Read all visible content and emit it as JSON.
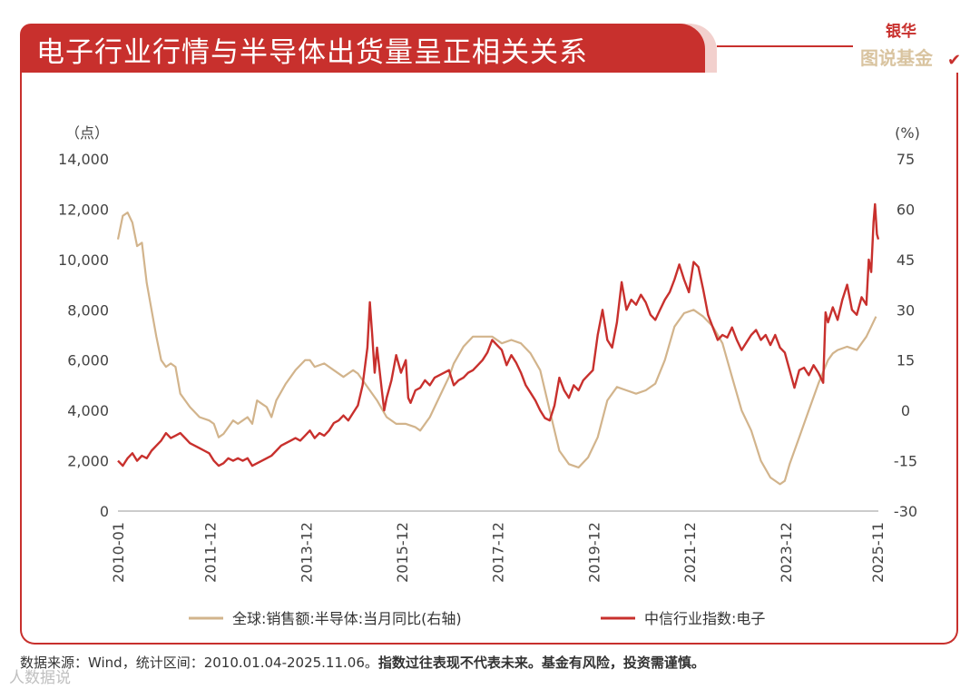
{
  "header": {
    "title": "电子行业行情与半导体出货量呈正相关关系"
  },
  "logo": {
    "top": "银华",
    "bottom": "图说基金"
  },
  "footnote": {
    "source": "数据来源：Wind，统计区间：2010.01.04-2025.11.06。",
    "disclaimer": "指数过往表现不代表未来。基金有风险，投资需谨慎。"
  },
  "watermark": "人数据说",
  "colors": {
    "accent": "#c8302d",
    "gold": "#d2b48c",
    "red_series": "#c8302d"
  },
  "chart_data": {
    "type": "line",
    "left_unit": "（点）",
    "right_unit": "(%)",
    "left_ylim": [
      0,
      14000
    ],
    "left_ticks": [
      "14,000",
      "12,000",
      "10,000",
      "8,000",
      "6,000",
      "4,000",
      "2,000",
      "0"
    ],
    "right_ylim": [
      -30,
      75
    ],
    "right_ticks": [
      "75",
      "60",
      "45",
      "30",
      "15",
      "0",
      "-15",
      "-30"
    ],
    "x_range": [
      2010.0,
      2025.85
    ],
    "x_ticks": [
      {
        "label": "2010-01",
        "t": 2010.0
      },
      {
        "label": "2011-12",
        "t": 2011.92
      },
      {
        "label": "2013-12",
        "t": 2013.92
      },
      {
        "label": "2015-12",
        "t": 2015.92
      },
      {
        "label": "2017-12",
        "t": 2017.92
      },
      {
        "label": "2019-12",
        "t": 2019.92
      },
      {
        "label": "2021-12",
        "t": 2021.92
      },
      {
        "label": "2023-12",
        "t": 2023.92
      },
      {
        "label": "2025-11",
        "t": 2025.83
      }
    ],
    "grid": false,
    "legend_position": "bottom",
    "series": [
      {
        "name": "全球:销售额:半导体:当月同比(右轴)",
        "axis": "right",
        "color": "#d2b48c",
        "points": [
          [
            2010.0,
            51
          ],
          [
            2010.1,
            58
          ],
          [
            2010.2,
            59
          ],
          [
            2010.3,
            56
          ],
          [
            2010.4,
            49
          ],
          [
            2010.5,
            50
          ],
          [
            2010.6,
            38
          ],
          [
            2010.7,
            30
          ],
          [
            2010.8,
            22
          ],
          [
            2010.9,
            15
          ],
          [
            2011.0,
            13
          ],
          [
            2011.1,
            14
          ],
          [
            2011.2,
            13
          ],
          [
            2011.3,
            5
          ],
          [
            2011.5,
            1
          ],
          [
            2011.7,
            -2
          ],
          [
            2011.9,
            -3
          ],
          [
            2012.0,
            -4
          ],
          [
            2012.1,
            -8
          ],
          [
            2012.2,
            -7
          ],
          [
            2012.3,
            -5
          ],
          [
            2012.4,
            -3
          ],
          [
            2012.5,
            -4
          ],
          [
            2012.6,
            -3
          ],
          [
            2012.7,
            -2
          ],
          [
            2012.8,
            -4
          ],
          [
            2012.9,
            3
          ],
          [
            2013.0,
            2
          ],
          [
            2013.1,
            1
          ],
          [
            2013.2,
            -2
          ],
          [
            2013.3,
            3
          ],
          [
            2013.5,
            8
          ],
          [
            2013.7,
            12
          ],
          [
            2013.9,
            15
          ],
          [
            2014.0,
            15
          ],
          [
            2014.1,
            13
          ],
          [
            2014.3,
            14
          ],
          [
            2014.5,
            12
          ],
          [
            2014.7,
            10
          ],
          [
            2014.9,
            12
          ],
          [
            2015.0,
            11
          ],
          [
            2015.2,
            7
          ],
          [
            2015.4,
            3
          ],
          [
            2015.6,
            -2
          ],
          [
            2015.8,
            -4
          ],
          [
            2016.0,
            -4
          ],
          [
            2016.2,
            -5
          ],
          [
            2016.3,
            -6
          ],
          [
            2016.5,
            -2
          ],
          [
            2016.7,
            4
          ],
          [
            2016.9,
            10
          ],
          [
            2017.0,
            14
          ],
          [
            2017.2,
            19
          ],
          [
            2017.4,
            22
          ],
          [
            2017.6,
            22
          ],
          [
            2017.8,
            22
          ],
          [
            2018.0,
            20
          ],
          [
            2018.2,
            21
          ],
          [
            2018.4,
            20
          ],
          [
            2018.6,
            17
          ],
          [
            2018.8,
            12
          ],
          [
            2019.0,
            0
          ],
          [
            2019.2,
            -12
          ],
          [
            2019.4,
            -16
          ],
          [
            2019.6,
            -17
          ],
          [
            2019.8,
            -14
          ],
          [
            2020.0,
            -8
          ],
          [
            2020.2,
            3
          ],
          [
            2020.4,
            7
          ],
          [
            2020.6,
            6
          ],
          [
            2020.8,
            5
          ],
          [
            2021.0,
            6
          ],
          [
            2021.2,
            8
          ],
          [
            2021.4,
            15
          ],
          [
            2021.6,
            25
          ],
          [
            2021.8,
            29
          ],
          [
            2022.0,
            30
          ],
          [
            2022.2,
            28
          ],
          [
            2022.4,
            25
          ],
          [
            2022.6,
            20
          ],
          [
            2022.8,
            10
          ],
          [
            2023.0,
            0
          ],
          [
            2023.2,
            -6
          ],
          [
            2023.4,
            -15
          ],
          [
            2023.6,
            -20
          ],
          [
            2023.8,
            -22
          ],
          [
            2023.9,
            -21
          ],
          [
            2024.0,
            -16
          ],
          [
            2024.2,
            -8
          ],
          [
            2024.4,
            0
          ],
          [
            2024.6,
            8
          ],
          [
            2024.8,
            15
          ],
          [
            2024.9,
            17
          ],
          [
            2025.0,
            18
          ],
          [
            2025.2,
            19
          ],
          [
            2025.4,
            18
          ],
          [
            2025.6,
            22
          ],
          [
            2025.7,
            25
          ],
          [
            2025.8,
            28
          ]
        ]
      },
      {
        "name": "中信行业指数:电子",
        "axis": "left",
        "color": "#c8302d",
        "points": [
          [
            2010.0,
            2000
          ],
          [
            2010.1,
            1800
          ],
          [
            2010.2,
            2100
          ],
          [
            2010.3,
            2300
          ],
          [
            2010.4,
            2000
          ],
          [
            2010.5,
            2200
          ],
          [
            2010.6,
            2100
          ],
          [
            2010.7,
            2400
          ],
          [
            2010.8,
            2600
          ],
          [
            2010.9,
            2800
          ],
          [
            2011.0,
            3100
          ],
          [
            2011.1,
            2900
          ],
          [
            2011.2,
            3000
          ],
          [
            2011.3,
            3100
          ],
          [
            2011.4,
            2900
          ],
          [
            2011.5,
            2700
          ],
          [
            2011.6,
            2600
          ],
          [
            2011.7,
            2500
          ],
          [
            2011.8,
            2400
          ],
          [
            2011.9,
            2300
          ],
          [
            2012.0,
            2000
          ],
          [
            2012.1,
            1800
          ],
          [
            2012.2,
            1900
          ],
          [
            2012.3,
            2100
          ],
          [
            2012.4,
            2000
          ],
          [
            2012.5,
            2100
          ],
          [
            2012.6,
            2000
          ],
          [
            2012.7,
            2100
          ],
          [
            2012.8,
            1800
          ],
          [
            2012.9,
            1900
          ],
          [
            2013.0,
            2000
          ],
          [
            2013.1,
            2100
          ],
          [
            2013.2,
            2200
          ],
          [
            2013.3,
            2400
          ],
          [
            2013.4,
            2600
          ],
          [
            2013.5,
            2700
          ],
          [
            2013.6,
            2800
          ],
          [
            2013.7,
            2900
          ],
          [
            2013.8,
            2800
          ],
          [
            2013.9,
            3000
          ],
          [
            2014.0,
            3200
          ],
          [
            2014.1,
            2900
          ],
          [
            2014.2,
            3100
          ],
          [
            2014.3,
            3000
          ],
          [
            2014.4,
            3200
          ],
          [
            2014.5,
            3500
          ],
          [
            2014.6,
            3600
          ],
          [
            2014.7,
            3800
          ],
          [
            2014.8,
            3600
          ],
          [
            2014.9,
            3900
          ],
          [
            2015.0,
            4200
          ],
          [
            2015.1,
            5000
          ],
          [
            2015.2,
            6500
          ],
          [
            2015.25,
            8300
          ],
          [
            2015.3,
            7000
          ],
          [
            2015.35,
            5500
          ],
          [
            2015.4,
            6500
          ],
          [
            2015.5,
            4800
          ],
          [
            2015.55,
            4000
          ],
          [
            2015.6,
            4500
          ],
          [
            2015.7,
            5200
          ],
          [
            2015.8,
            6200
          ],
          [
            2015.9,
            5500
          ],
          [
            2016.0,
            6000
          ],
          [
            2016.05,
            4500
          ],
          [
            2016.1,
            4300
          ],
          [
            2016.2,
            4800
          ],
          [
            2016.3,
            4900
          ],
          [
            2016.4,
            5200
          ],
          [
            2016.5,
            5000
          ],
          [
            2016.6,
            5300
          ],
          [
            2016.7,
            5400
          ],
          [
            2016.8,
            5500
          ],
          [
            2016.9,
            5600
          ],
          [
            2017.0,
            5000
          ],
          [
            2017.1,
            5200
          ],
          [
            2017.2,
            5300
          ],
          [
            2017.3,
            5500
          ],
          [
            2017.4,
            5600
          ],
          [
            2017.5,
            5800
          ],
          [
            2017.6,
            6000
          ],
          [
            2017.7,
            6300
          ],
          [
            2017.8,
            6800
          ],
          [
            2017.9,
            6600
          ],
          [
            2018.0,
            6400
          ],
          [
            2018.1,
            5800
          ],
          [
            2018.2,
            6200
          ],
          [
            2018.3,
            5900
          ],
          [
            2018.4,
            5500
          ],
          [
            2018.5,
            5000
          ],
          [
            2018.6,
            4700
          ],
          [
            2018.7,
            4400
          ],
          [
            2018.8,
            4000
          ],
          [
            2018.9,
            3700
          ],
          [
            2019.0,
            3600
          ],
          [
            2019.1,
            4200
          ],
          [
            2019.2,
            5300
          ],
          [
            2019.3,
            4800
          ],
          [
            2019.4,
            4500
          ],
          [
            2019.5,
            5000
          ],
          [
            2019.6,
            4800
          ],
          [
            2019.7,
            5200
          ],
          [
            2019.8,
            5400
          ],
          [
            2019.9,
            5600
          ],
          [
            2020.0,
            7000
          ],
          [
            2020.1,
            8000
          ],
          [
            2020.2,
            6800
          ],
          [
            2020.3,
            6500
          ],
          [
            2020.4,
            7500
          ],
          [
            2020.5,
            9100
          ],
          [
            2020.6,
            8000
          ],
          [
            2020.7,
            8400
          ],
          [
            2020.8,
            8200
          ],
          [
            2020.9,
            8600
          ],
          [
            2021.0,
            8300
          ],
          [
            2021.1,
            7800
          ],
          [
            2021.2,
            7600
          ],
          [
            2021.3,
            8000
          ],
          [
            2021.4,
            8400
          ],
          [
            2021.5,
            8700
          ],
          [
            2021.6,
            9200
          ],
          [
            2021.7,
            9800
          ],
          [
            2021.8,
            9200
          ],
          [
            2021.9,
            8700
          ],
          [
            2022.0,
            9900
          ],
          [
            2022.1,
            9700
          ],
          [
            2022.2,
            8800
          ],
          [
            2022.3,
            7800
          ],
          [
            2022.4,
            7300
          ],
          [
            2022.5,
            6800
          ],
          [
            2022.6,
            7000
          ],
          [
            2022.7,
            6900
          ],
          [
            2022.8,
            7300
          ],
          [
            2022.9,
            6800
          ],
          [
            2023.0,
            6400
          ],
          [
            2023.1,
            6700
          ],
          [
            2023.2,
            7000
          ],
          [
            2023.3,
            7200
          ],
          [
            2023.4,
            6800
          ],
          [
            2023.5,
            7000
          ],
          [
            2023.6,
            6600
          ],
          [
            2023.7,
            7000
          ],
          [
            2023.8,
            6500
          ],
          [
            2023.9,
            6300
          ],
          [
            2024.0,
            5600
          ],
          [
            2024.1,
            4900
          ],
          [
            2024.2,
            5600
          ],
          [
            2024.3,
            5700
          ],
          [
            2024.4,
            5400
          ],
          [
            2024.5,
            5800
          ],
          [
            2024.6,
            5500
          ],
          [
            2024.7,
            5100
          ],
          [
            2024.75,
            7900
          ],
          [
            2024.8,
            7500
          ],
          [
            2024.9,
            8100
          ],
          [
            2025.0,
            7600
          ],
          [
            2025.1,
            8400
          ],
          [
            2025.2,
            9000
          ],
          [
            2025.3,
            8000
          ],
          [
            2025.4,
            7800
          ],
          [
            2025.5,
            8500
          ],
          [
            2025.6,
            8200
          ],
          [
            2025.65,
            10000
          ],
          [
            2025.7,
            9500
          ],
          [
            2025.75,
            11500
          ],
          [
            2025.78,
            12200
          ],
          [
            2025.82,
            11000
          ],
          [
            2025.85,
            10800
          ]
        ]
      }
    ]
  }
}
